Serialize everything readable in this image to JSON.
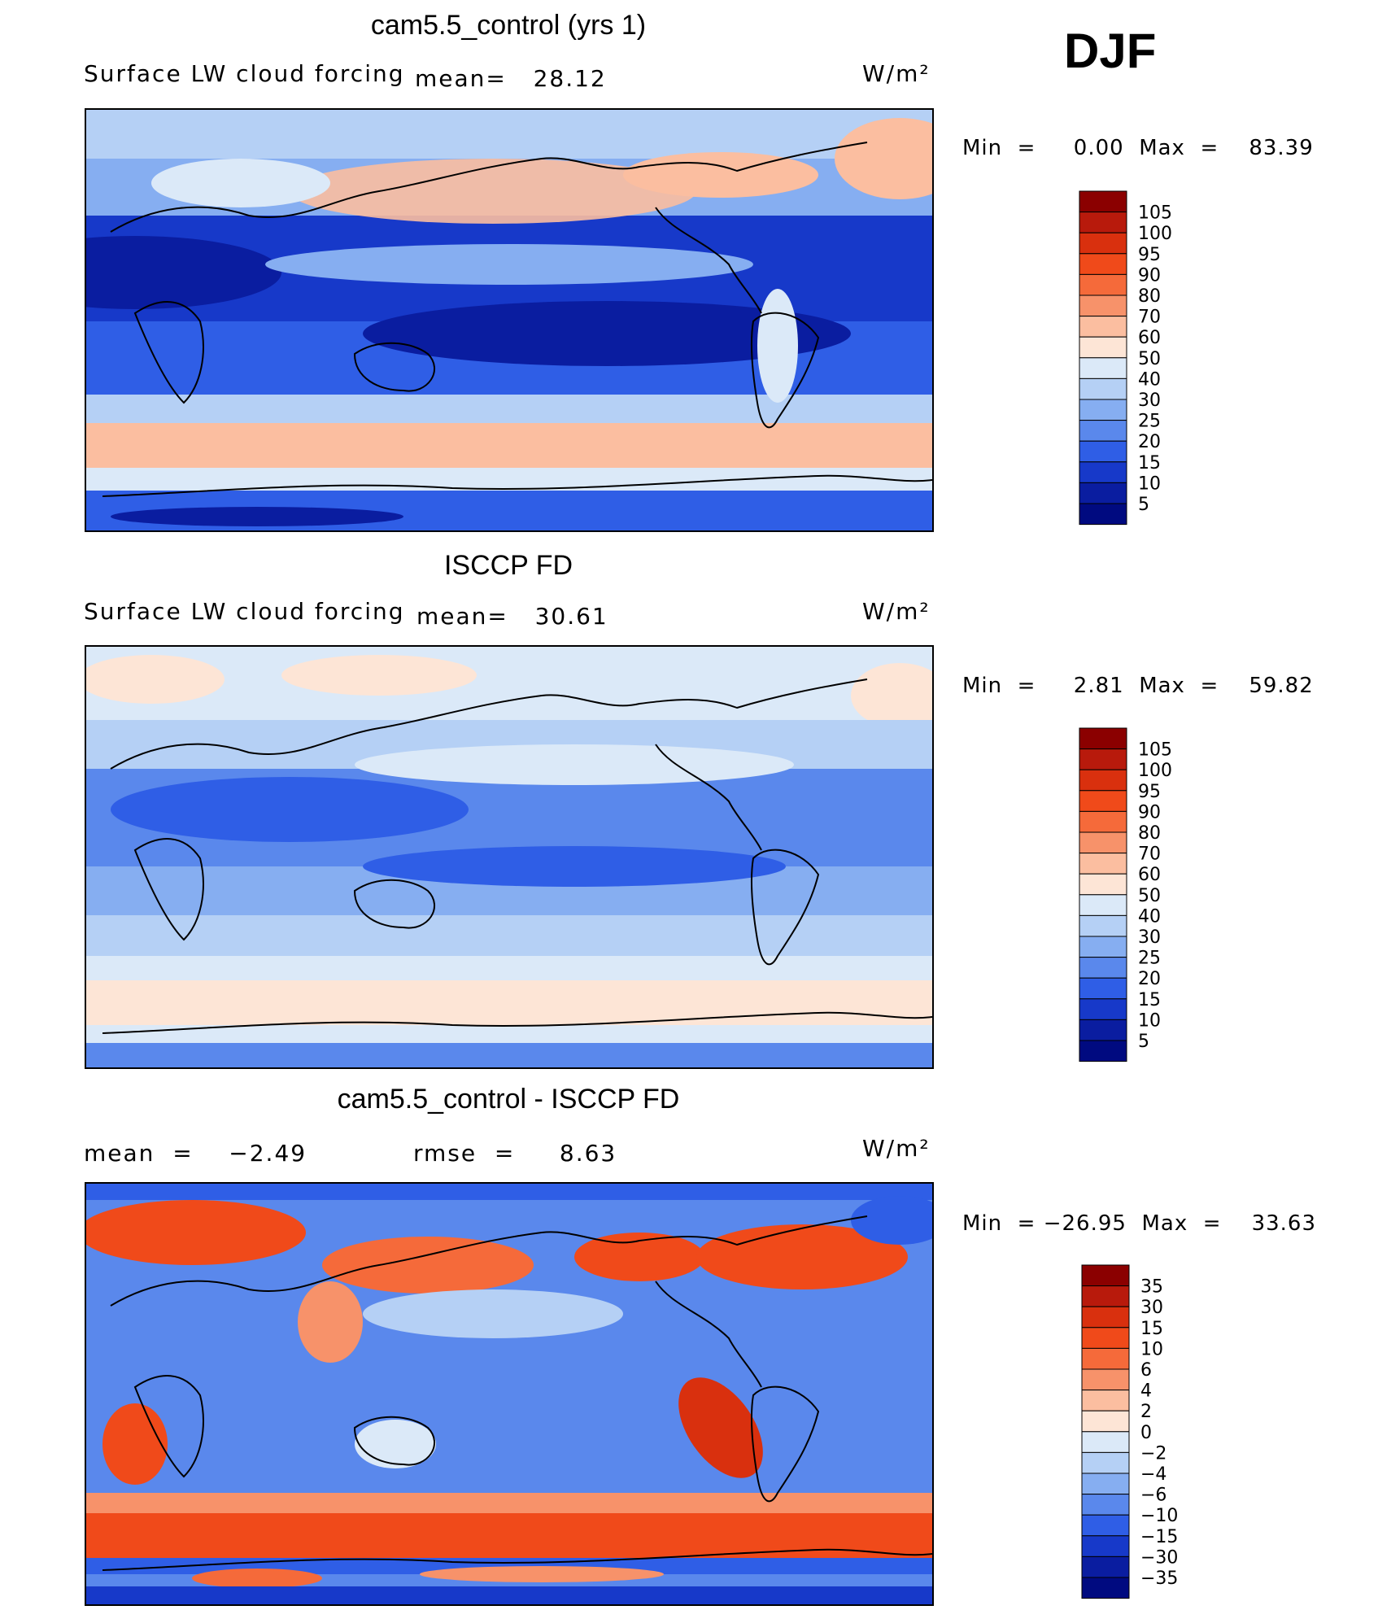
{
  "season": "DJF",
  "panels": [
    {
      "title": "cam5.5_control (yrs 1)",
      "left_text": "Surface LW cloud forcing",
      "mid_text": "mean=   28.12",
      "units": "W/m²",
      "minmax": "Min  =     0.00  Max  =    83.39",
      "colorbar_levels": [
        "105",
        "100",
        "95",
        "90",
        "80",
        "70",
        "60",
        "50",
        "40",
        "30",
        "25",
        "20",
        "15",
        "10",
        "5"
      ],
      "colorbar_colors": [
        "#8b0000",
        "#b81a0c",
        "#d9300e",
        "#f04a1a",
        "#f56a3a",
        "#f7926a",
        "#fbbea0",
        "#fde5d6",
        "#dbe9f8",
        "#b5d0f5",
        "#86aef1",
        "#5a88ec",
        "#2f5ee6",
        "#1739c9",
        "#0a1da0",
        "#000a80"
      ]
    },
    {
      "title": "ISCCP FD",
      "left_text": "Surface LW cloud forcing",
      "mid_text": "mean=   30.61",
      "units": "W/m²",
      "minmax": "Min  =     2.81  Max  =    59.82",
      "colorbar_levels": [
        "105",
        "100",
        "95",
        "90",
        "80",
        "70",
        "60",
        "50",
        "40",
        "30",
        "25",
        "20",
        "15",
        "10",
        "5"
      ],
      "colorbar_colors": [
        "#8b0000",
        "#b81a0c",
        "#d9300e",
        "#f04a1a",
        "#f56a3a",
        "#f7926a",
        "#fbbea0",
        "#fde5d6",
        "#dbe9f8",
        "#b5d0f5",
        "#86aef1",
        "#5a88ec",
        "#2f5ee6",
        "#1739c9",
        "#0a1da0",
        "#000a80"
      ]
    },
    {
      "title": "cam5.5_control - ISCCP FD",
      "left_text": "mean  =    −2.49",
      "mid_text": "rmse  =     8.63",
      "units": "W/m²",
      "minmax": "Min  = −26.95  Max  =    33.63",
      "colorbar_levels": [
        "35",
        "30",
        "15",
        "10",
        "6",
        "4",
        "2",
        "0",
        "−2",
        "−4",
        "−6",
        "−10",
        "−15",
        "−30",
        "−35"
      ],
      "colorbar_colors": [
        "#8b0000",
        "#b81a0c",
        "#d9300e",
        "#f04a1a",
        "#f56a3a",
        "#f7926a",
        "#fbbea0",
        "#fde5d6",
        "#dbe9f8",
        "#b5d0f5",
        "#86aef1",
        "#5a88ec",
        "#2f5ee6",
        "#1739c9",
        "#0a1da0",
        "#000a80"
      ]
    }
  ],
  "chart_data": [
    {
      "type": "heatmap",
      "title": "cam5.5_control (yrs 1)",
      "variable": "Surface LW cloud forcing",
      "units": "W/m²",
      "mean": 28.12,
      "min": 0.0,
      "max": 83.39,
      "contour_levels": [
        5,
        10,
        15,
        20,
        25,
        30,
        40,
        50,
        60,
        70,
        80,
        90,
        95,
        100,
        105
      ]
    },
    {
      "type": "heatmap",
      "title": "ISCCP FD",
      "variable": "Surface LW cloud forcing",
      "units": "W/m²",
      "mean": 30.61,
      "min": 2.81,
      "max": 59.82,
      "contour_levels": [
        5,
        10,
        15,
        20,
        25,
        30,
        40,
        50,
        60,
        70,
        80,
        90,
        95,
        100,
        105
      ]
    },
    {
      "type": "heatmap",
      "title": "cam5.5_control - ISCCP FD",
      "units": "W/m²",
      "mean": -2.49,
      "rmse": 8.63,
      "min": -26.95,
      "max": 33.63,
      "contour_levels": [
        -35,
        -30,
        -15,
        -10,
        -6,
        -4,
        -2,
        0,
        2,
        4,
        6,
        10,
        15,
        30,
        35
      ]
    }
  ]
}
